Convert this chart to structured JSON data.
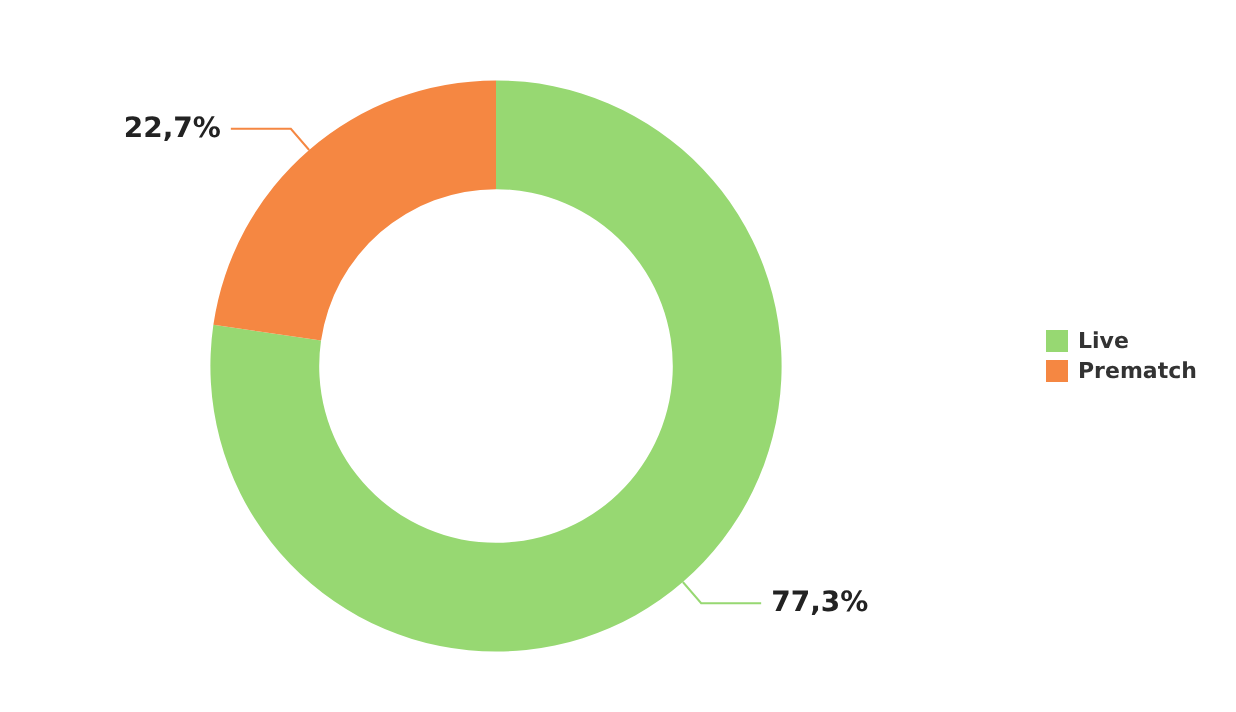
{
  "chart_data": {
    "type": "donut",
    "categories": [
      "Live",
      "Prematch"
    ],
    "values": [
      77.3,
      22.7
    ],
    "value_labels": [
      "77,3%",
      "22,7%"
    ],
    "colors": [
      "#97d872",
      "#f58742"
    ],
    "legend": "right"
  }
}
